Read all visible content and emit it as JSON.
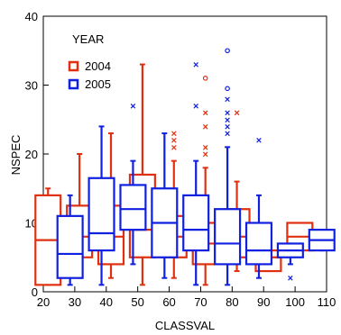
{
  "chart_data": {
    "type": "box",
    "title": "",
    "xlabel": "CLASSVAL",
    "ylabel": "NSPEC",
    "xlim": [
      20,
      110
    ],
    "ylim": [
      0,
      40
    ],
    "xticks": [
      20,
      30,
      40,
      50,
      60,
      70,
      80,
      90,
      100,
      110
    ],
    "yticks": [
      0,
      10,
      20,
      30,
      40
    ],
    "grid": false,
    "legend": {
      "title": "YEAR",
      "placement": "top-left"
    },
    "series": [
      {
        "name": "2004",
        "color": "#e03010",
        "boxes": [
          {
            "x": 25,
            "low": 1,
            "q1": 1,
            "median": 7.5,
            "q3": 14,
            "high": 15,
            "outliers_x": [],
            "outliers_o": []
          },
          {
            "x": 35,
            "low": 2,
            "q1": 5,
            "median": 8,
            "q3": 12.5,
            "high": 20,
            "outliers_x": [],
            "outliers_o": []
          },
          {
            "x": 45,
            "low": 2,
            "q1": 4,
            "median": 8,
            "q3": 12.5,
            "high": 23,
            "outliers_x": [],
            "outliers_o": []
          },
          {
            "x": 55,
            "low": 1,
            "q1": 5,
            "median": 9,
            "q3": 17,
            "high": 33,
            "outliers_x": [],
            "outliers_o": []
          },
          {
            "x": 65,
            "low": 2,
            "q1": 5,
            "median": 8,
            "q3": 11,
            "high": 19,
            "outliers_x": [
              21,
              22,
              23
            ],
            "outliers_o": []
          },
          {
            "x": 75,
            "low": 1,
            "q1": 4,
            "median": 7,
            "q3": 10,
            "high": 18,
            "outliers_x": [
              20,
              21,
              24,
              26
            ],
            "outliers_o": [
              31
            ]
          },
          {
            "x": 85,
            "low": 3,
            "q1": 5,
            "median": 8,
            "q3": 12,
            "high": 16,
            "outliers_x": [
              26
            ],
            "outliers_o": []
          },
          {
            "x": 95,
            "low": 3,
            "q1": 3,
            "median": 5,
            "q3": 6,
            "high": 9,
            "outliers_x": [],
            "outliers_o": []
          },
          {
            "x": 105,
            "low": 6,
            "q1": 6,
            "median": 8,
            "q3": 10,
            "high": 10,
            "outliers_x": [],
            "outliers_o": []
          }
        ]
      },
      {
        "name": "2005",
        "color": "#1020e0",
        "boxes": [
          {
            "x": 25,
            "low": 1,
            "q1": 2,
            "median": 5.5,
            "q3": 11,
            "high": 14,
            "outliers_x": [],
            "outliers_o": []
          },
          {
            "x": 35,
            "low": 1,
            "q1": 6,
            "median": 8.5,
            "q3": 16.5,
            "high": 24,
            "outliers_x": [],
            "outliers_o": []
          },
          {
            "x": 45,
            "low": 4,
            "q1": 9,
            "median": 12,
            "q3": 15.5,
            "high": 19,
            "outliers_x": [
              27
            ],
            "outliers_o": []
          },
          {
            "x": 55,
            "low": 2,
            "q1": 5,
            "median": 10,
            "q3": 15,
            "high": 23,
            "outliers_x": [],
            "outliers_o": []
          },
          {
            "x": 65,
            "low": 1,
            "q1": 6,
            "median": 9,
            "q3": 14,
            "high": 19,
            "outliers_x": [
              27,
              33
            ],
            "outliers_o": []
          },
          {
            "x": 75,
            "low": 1,
            "q1": 4,
            "median": 7,
            "q3": 12,
            "high": 21,
            "outliers_x": [
              23,
              24,
              25,
              26,
              28
            ],
            "outliers_o": [
              29.5,
              35
            ]
          },
          {
            "x": 85,
            "low": 2,
            "q1": 4,
            "median": 6,
            "q3": 10,
            "high": 14,
            "outliers_x": [
              22
            ],
            "outliers_o": []
          },
          {
            "x": 95,
            "low": 4,
            "q1": 5,
            "median": 6,
            "q3": 7,
            "high": 7,
            "outliers_x": [
              2
            ],
            "outliers_o": []
          },
          {
            "x": 105,
            "low": 6,
            "q1": 6,
            "median": 7.5,
            "q3": 9,
            "high": 9,
            "outliers_x": [],
            "outliers_o": []
          }
        ]
      }
    ]
  }
}
